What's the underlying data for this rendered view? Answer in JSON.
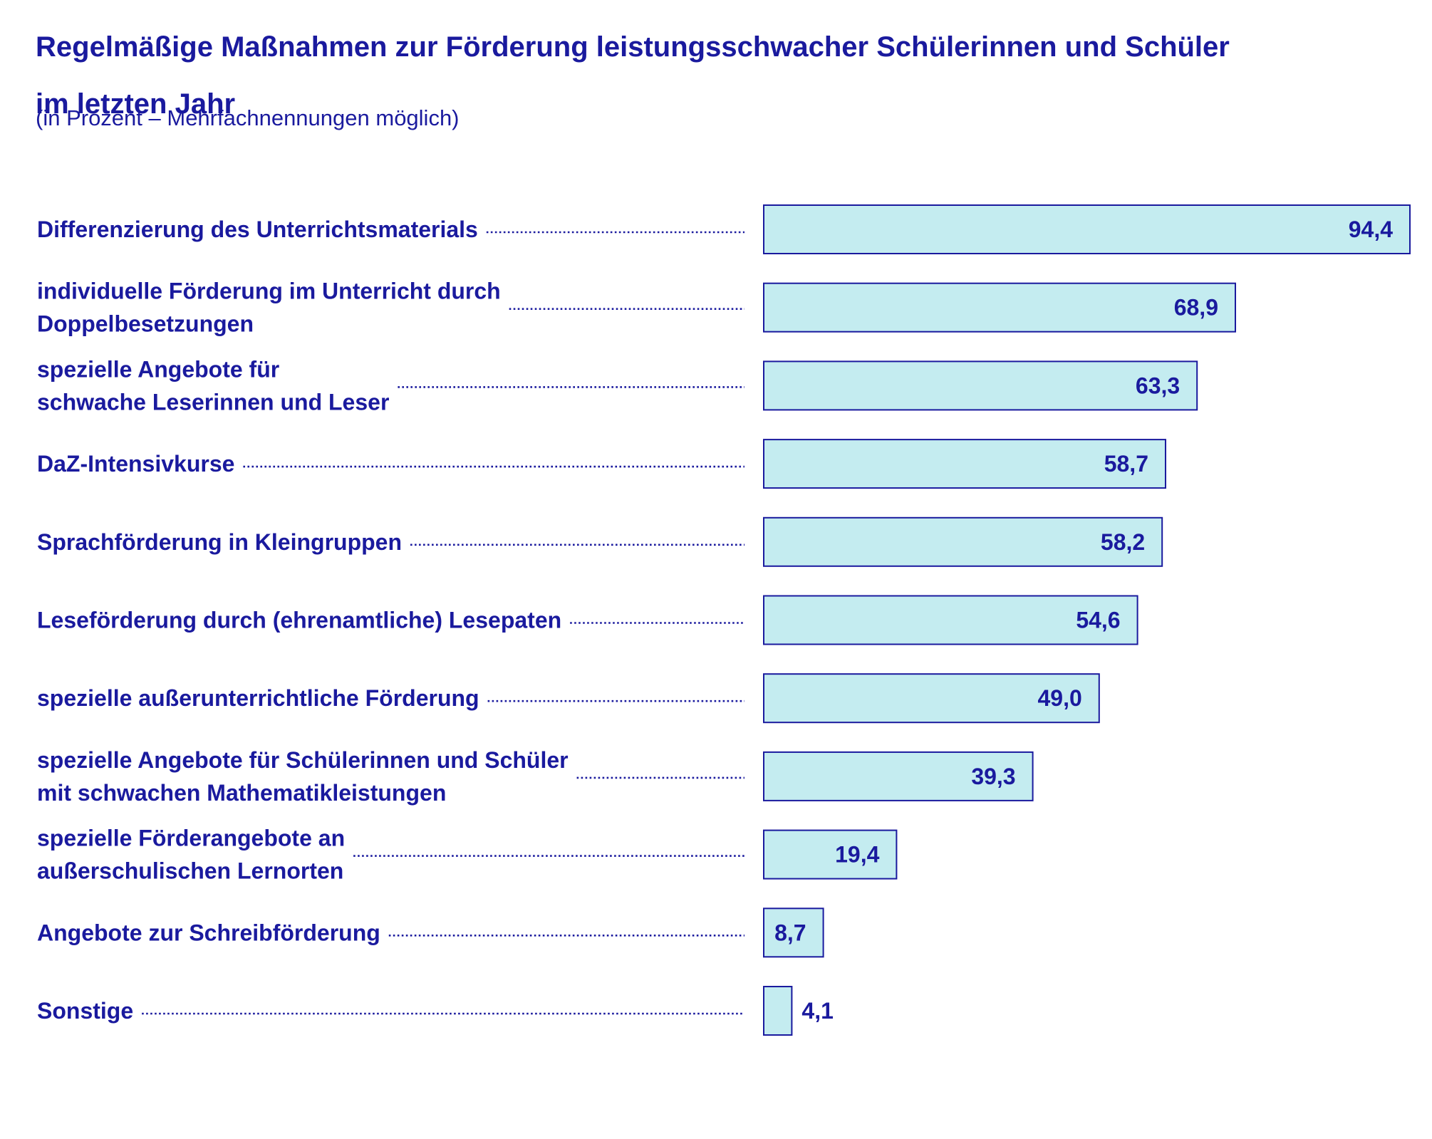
{
  "chart_data": {
    "type": "bar",
    "orientation": "horizontal",
    "title_lines": [
      "Regelmäßige Maßnahmen zur Förderung leistungsschwacher Schülerinnen und Schüler",
      "im letzten Jahr"
    ],
    "subtitle": "(in Prozent – Mehrfachnennungen möglich)",
    "categories": [
      [
        "Differenzierung des Unterrichtsmaterials"
      ],
      [
        "individuelle Förderung im Unterricht durch",
        "Doppelbesetzungen"
      ],
      [
        "spezielle Angebote für",
        "schwache Leserinnen und Leser"
      ],
      [
        "DaZ-Intensivkurse"
      ],
      [
        "Sprachförderung in Kleingruppen"
      ],
      [
        "Leseförderung durch (ehrenamtliche) Lesepaten"
      ],
      [
        "spezielle außerunterrichtliche Förderung"
      ],
      [
        "spezielle Angebote für Schülerinnen und Schüler",
        "mit schwachen Mathematikleistungen"
      ],
      [
        "spezielle Förderangebote an",
        "außerschulischen Lernorten"
      ],
      [
        "Angebote zur Schreibförderung"
      ],
      [
        "Sonstige"
      ]
    ],
    "values": [
      94.4,
      68.9,
      63.3,
      58.7,
      58.2,
      54.6,
      49.0,
      39.3,
      19.4,
      8.7,
      4.1
    ],
    "value_labels": [
      "94,4",
      "68,9",
      "63,3",
      "58,7",
      "58,2",
      "54,6",
      "49,0",
      "39,3",
      "19,4",
      "8,7",
      "4,1"
    ],
    "xlim": [
      0,
      94.4
    ],
    "grid": false,
    "legend": "none",
    "colors": {
      "bar_fill": "#c4ecf0",
      "bar_stroke": "#1a1a9e",
      "text": "#1a1a9e",
      "leader_dots": "#1a1a9e"
    }
  }
}
